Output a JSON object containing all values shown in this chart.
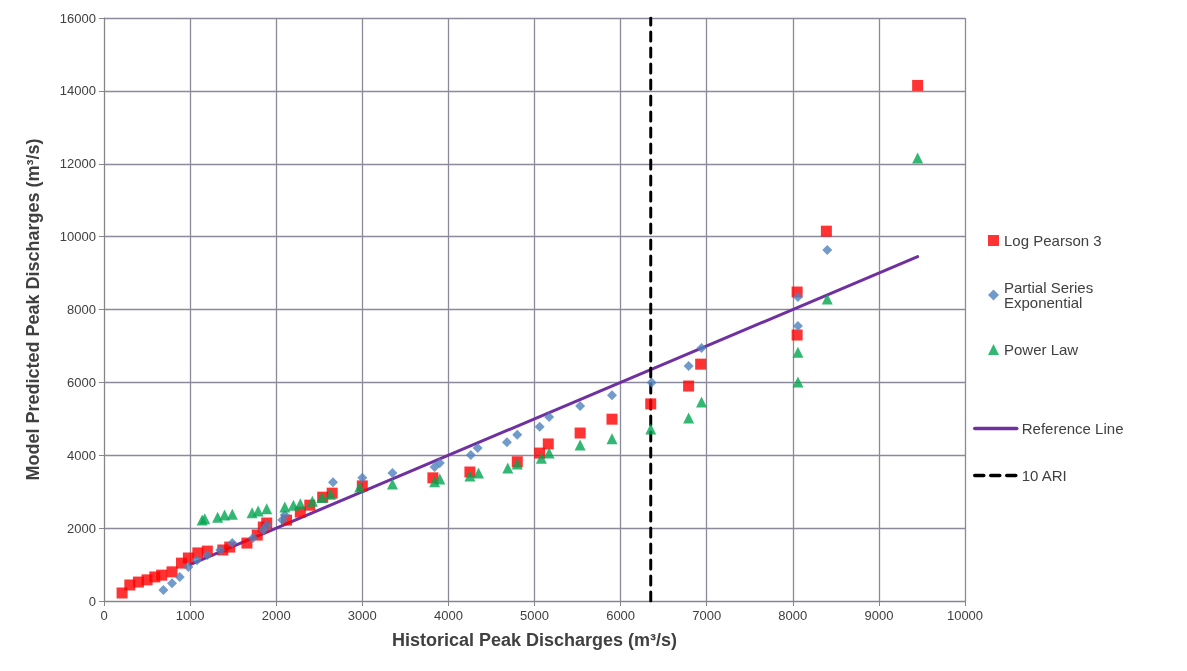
{
  "chart_data": {
    "type": "scatter",
    "xlabel": "Historical Peak Discharges (m³/s)",
    "ylabel": "Model Predicted Peak Discharges (m³/s)",
    "xlim": [
      0,
      10000
    ],
    "xticks": [
      0,
      1000,
      2000,
      3000,
      4000,
      5000,
      6000,
      7000,
      8000,
      9000,
      10000
    ],
    "ylim": [
      0,
      16000
    ],
    "yticks": [
      0,
      2000,
      4000,
      6000,
      8000,
      10000,
      12000,
      14000,
      16000
    ],
    "grid": true,
    "legend": "right",
    "series": [
      {
        "name": "Log Pearson 3",
        "color": "#ff0000",
        "marker": "square",
        "x": [
          210,
          300,
          400,
          500,
          590,
          670,
          790,
          900,
          980,
          1090,
          1200,
          1380,
          1460,
          1660,
          1780,
          1850,
          1890,
          2120,
          2280,
          2390,
          2540,
          2650,
          3000,
          3820,
          4250,
          4800,
          5060,
          5160,
          5530,
          5900,
          6350,
          6790,
          6930,
          8050,
          8050,
          8390,
          9450
        ],
        "values": [
          220,
          440,
          520,
          580,
          660,
          710,
          800,
          1040,
          1180,
          1320,
          1370,
          1400,
          1480,
          1590,
          1810,
          2030,
          2140,
          2220,
          2440,
          2630,
          2850,
          2960,
          3160,
          3380,
          3540,
          3820,
          4060,
          4310,
          4610,
          4990,
          5410,
          5900,
          6500,
          7300,
          8480,
          10150,
          14150
        ]
      },
      {
        "name": "Partial Series Exponential",
        "color": "#4f81bd",
        "marker": "diamond",
        "x": [
          690,
          790,
          880,
          980,
          1080,
          1200,
          1350,
          1490,
          1730,
          1850,
          1890,
          2070,
          2100,
          2660,
          3000,
          3350,
          3840,
          3900,
          4260,
          4340,
          4680,
          4800,
          5060,
          5170,
          5530,
          5900,
          6360,
          6790,
          6940,
          8060,
          8060,
          8400
        ],
        "values": [
          300,
          490,
          660,
          930,
          1120,
          1260,
          1400,
          1590,
          1730,
          1950,
          2080,
          2220,
          2360,
          3260,
          3380,
          3510,
          3680,
          3790,
          4010,
          4200,
          4360,
          4560,
          4780,
          5050,
          5350,
          5650,
          6000,
          6450,
          6940,
          7550,
          8340,
          9630
        ]
      },
      {
        "name": "Power Law",
        "color": "#00a651",
        "marker": "triangle",
        "x": [
          1140,
          1170,
          1320,
          1400,
          1490,
          1720,
          1790,
          1890,
          2100,
          2200,
          2280,
          2420,
          2530,
          2630,
          2970,
          3350,
          3840,
          3900,
          4250,
          4350,
          4690,
          4800,
          5080,
          5170,
          5530,
          5900,
          6350,
          6790,
          6940,
          8060,
          8060,
          8400,
          9450
        ],
        "values": [
          2220,
          2260,
          2300,
          2360,
          2380,
          2420,
          2470,
          2530,
          2580,
          2630,
          2670,
          2740,
          2840,
          2930,
          3130,
          3210,
          3270,
          3350,
          3430,
          3510,
          3650,
          3760,
          3920,
          4060,
          4280,
          4450,
          4720,
          5020,
          5460,
          6010,
          6830,
          8290,
          12160
        ]
      },
      {
        "name": "Reference Line",
        "type": "line",
        "color": "#7030a0",
        "marker": "none",
        "x": [
          1000,
          9450
        ],
        "values": [
          1000,
          9450
        ]
      },
      {
        "name": "10 ARI",
        "type": "line",
        "color": "#000000",
        "marker": "none",
        "line_style": "dashed",
        "x": [
          6350,
          6350
        ],
        "values": [
          0,
          16000
        ]
      }
    ]
  }
}
